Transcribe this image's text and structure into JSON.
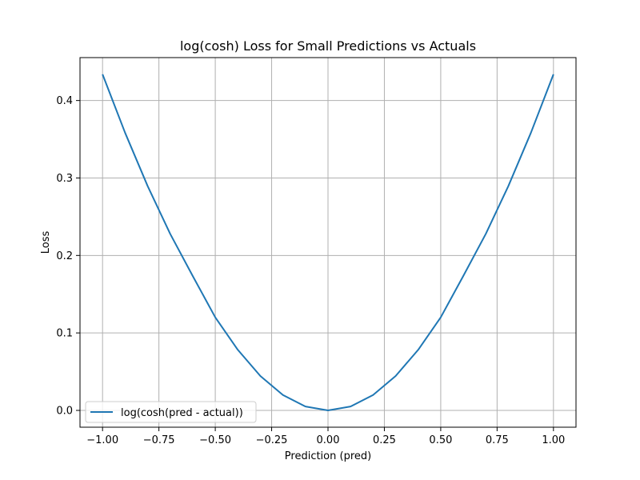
{
  "chart_data": {
    "type": "line",
    "title": "log(cosh) Loss for Small Predictions vs Actuals",
    "xlabel": "Prediction (pred)",
    "ylabel": "Loss",
    "xlim": [
      -1.1,
      1.1
    ],
    "ylim": [
      -0.0217,
      0.4554
    ],
    "grid": true,
    "legend_position": "lower-left",
    "xticks": [
      -1.0,
      -0.75,
      -0.5,
      -0.25,
      0.0,
      0.25,
      0.5,
      0.75,
      1.0
    ],
    "xtick_labels": [
      "−1.00",
      "−0.75",
      "−0.50",
      "−0.25",
      "0.00",
      "0.25",
      "0.50",
      "0.75",
      "1.00"
    ],
    "yticks": [
      0.0,
      0.1,
      0.2,
      0.3,
      0.4
    ],
    "ytick_labels": [
      "0.0",
      "0.1",
      "0.2",
      "0.3",
      "0.4"
    ],
    "series": [
      {
        "name": "log(cosh(pred - actual))",
        "color": "#1f77b4",
        "x": [
          -1.0,
          -0.9,
          -0.8,
          -0.7,
          -0.6,
          -0.5,
          -0.4,
          -0.3,
          -0.2,
          -0.1,
          0.0,
          0.1,
          0.2,
          0.3,
          0.4,
          0.5,
          0.6,
          0.7,
          0.8,
          0.9,
          1.0
        ],
        "y": [
          0.4338,
          0.3584,
          0.2896,
          0.2279,
          0.1735,
          0.1201,
          0.0782,
          0.0444,
          0.0199,
          0.005,
          0.0,
          0.005,
          0.0199,
          0.0444,
          0.0782,
          0.1201,
          0.1735,
          0.2279,
          0.2896,
          0.3584,
          0.4338
        ]
      }
    ]
  }
}
